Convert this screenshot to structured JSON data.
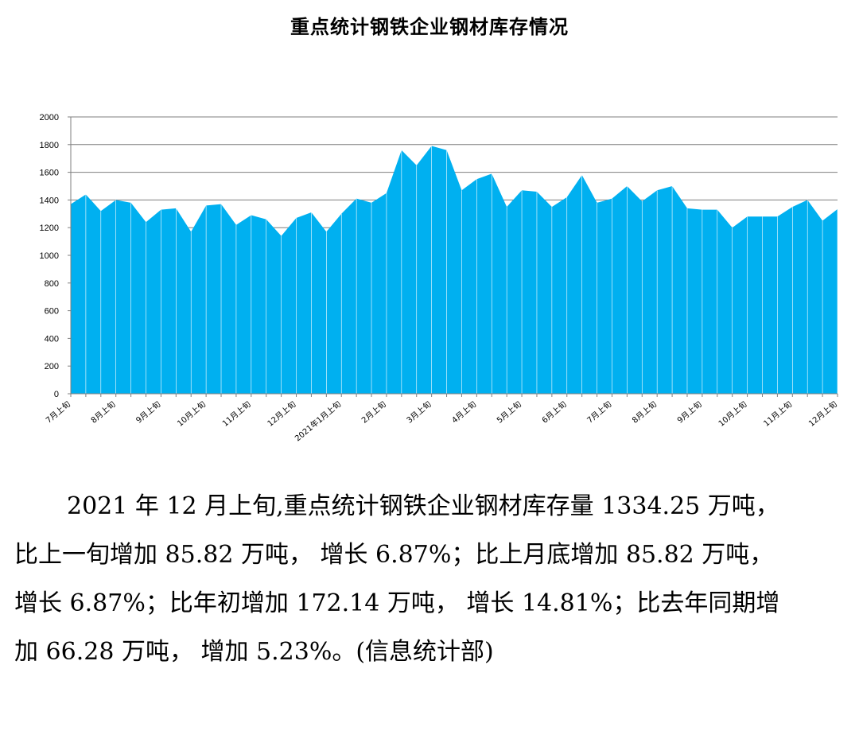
{
  "title": "重点统计钢铁企业钢材库存情况",
  "chart_data": {
    "type": "area",
    "title": "重点统计钢铁企业钢材库存情况",
    "xlabel": "",
    "ylabel": "",
    "ylim": [
      0,
      2000
    ],
    "y_ticks": [
      0,
      200,
      400,
      600,
      800,
      1000,
      1200,
      1400,
      1600,
      1800,
      2000
    ],
    "grid": true,
    "legend": "none",
    "color": "#00B0F0",
    "x_tick_labels": [
      {
        "index": 0,
        "label": "7月上旬"
      },
      {
        "index": 3,
        "label": "8月上旬"
      },
      {
        "index": 6,
        "label": "9月上旬"
      },
      {
        "index": 9,
        "label": "10月上旬"
      },
      {
        "index": 12,
        "label": "11月上旬"
      },
      {
        "index": 15,
        "label": "12月上旬"
      },
      {
        "index": 18,
        "label": "2021年1月上旬"
      },
      {
        "index": 21,
        "label": "2月上旬"
      },
      {
        "index": 24,
        "label": "3月上旬"
      },
      {
        "index": 27,
        "label": "4月上旬"
      },
      {
        "index": 30,
        "label": "5月上旬"
      },
      {
        "index": 33,
        "label": "6月上旬"
      },
      {
        "index": 36,
        "label": "7月上旬"
      },
      {
        "index": 39,
        "label": "8月上旬"
      },
      {
        "index": 42,
        "label": "9月上旬"
      },
      {
        "index": 45,
        "label": "10月上旬"
      },
      {
        "index": 48,
        "label": "11月上旬"
      },
      {
        "index": 51,
        "label": "12月上旬"
      }
    ],
    "values": [
      1370,
      1440,
      1320,
      1400,
      1380,
      1240,
      1330,
      1340,
      1170,
      1360,
      1370,
      1220,
      1290,
      1260,
      1140,
      1270,
      1310,
      1170,
      1300,
      1410,
      1380,
      1450,
      1760,
      1650,
      1790,
      1760,
      1470,
      1550,
      1590,
      1350,
      1470,
      1460,
      1350,
      1420,
      1580,
      1380,
      1410,
      1500,
      1390,
      1470,
      1500,
      1340,
      1330,
      1330,
      1200,
      1280,
      1280,
      1280,
      1350,
      1400,
      1250,
      1334.25
    ]
  },
  "paragraph": {
    "line1": "2021 年 12 月上旬,重点统计钢铁企业钢材库存量 1334.25 万吨，",
    "line2": "比上一旬增加 85.82 万吨， 增长 6.87%；比上月底增加 85.82 万吨，",
    "line3": "增长 6.87%；比年初增加 172.14 万吨， 增长 14.81%；比去年同期增",
    "line4": "加 66.28 万吨， 增加 5.23%。(信息统计部)"
  }
}
